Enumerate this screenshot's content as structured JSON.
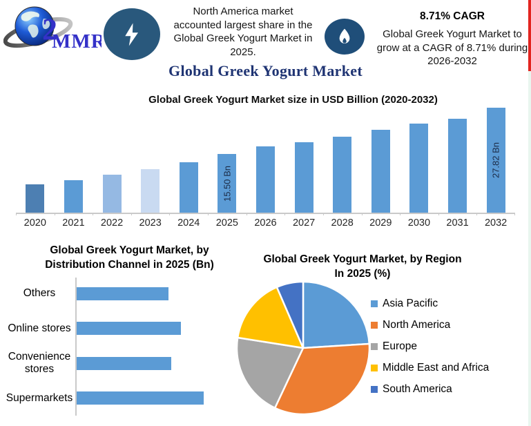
{
  "brand": {
    "logo_text": "MMR",
    "logo_icon": "globe-icon",
    "logo_numeral": "2"
  },
  "header": {
    "energy_icon": "lightning-icon",
    "headline": "North America market accounted largest share in the Global Greek Yogurt Market in 2025.",
    "growth_icon": "flame-icon",
    "cagr_title": "8.71% CAGR",
    "cagr_text": "Global Greek Yogurt Market to grow at a CAGR of 8.71% during 2026-2032"
  },
  "main_title": "Global Greek Yogurt Market",
  "colors": {
    "title_navy": "#1f3473",
    "bar_blue": "#5b9bd5",
    "bolt_badge_blue": "#29587c",
    "flame_badge_blue": "#1f4e79",
    "axis_gray": "#c9c9c9",
    "red_edge_strip": "#e2241f",
    "green_edge_strip": "#e9f6ef",
    "logo_blue": "#3431c8"
  },
  "chart_data": [
    {
      "id": "market_size",
      "type": "bar",
      "title": "Global Greek Yogurt Market size in USD Billion (2020-2032)",
      "categories": [
        "2020",
        "2021",
        "2022",
        "2023",
        "2024",
        "2025",
        "2026",
        "2027",
        "2028",
        "2029",
        "2030",
        "2031",
        "2032"
      ],
      "values": [
        7.5,
        8.7,
        10.1,
        11.5,
        13.4,
        15.5,
        17.6,
        18.7,
        20.2,
        22.0,
        23.6,
        24.9,
        27.82
      ],
      "ylabel": "USD Billion",
      "ylim": [
        0,
        27.82
      ],
      "data_labels": {
        "2025": "15.50 Bn",
        "2032": "27.82 Bn"
      },
      "bar_colors": [
        "#4d7fb2",
        "#5b9bd5",
        "#95b9e3",
        "#c9daf1",
        "#5b9bd5",
        "#5b9bd5",
        "#5b9bd5",
        "#5b9bd5",
        "#5b9bd5",
        "#5b9bd5",
        "#5b9bd5",
        "#5b9bd5",
        "#5b9bd5"
      ],
      "gridlines": false,
      "legend": false
    },
    {
      "id": "distribution_channel",
      "type": "bar",
      "orientation": "horizontal",
      "title_lines": [
        "Global Greek Yogurt Market, by",
        "Distribution Channel  in 2025 (Bn)"
      ],
      "categories": [
        "Others",
        "Online stores",
        "Convenience stores",
        "Supermarkets"
      ],
      "values": [
        3.4,
        3.85,
        3.5,
        4.7
      ],
      "xlim": [
        0,
        5
      ],
      "bar_color": "#5b9bd5",
      "gridlines": false,
      "legend": false
    },
    {
      "id": "region_share",
      "type": "pie",
      "title_lines": [
        "Global Greek Yogurt Market, by Region",
        "In 2025 (%)"
      ],
      "labels": [
        "Asia Pacific",
        "North America",
        "Europe",
        "Middle East and Africa",
        "South America"
      ],
      "values": [
        24,
        33,
        20.5,
        16,
        6.5
      ],
      "colors": [
        "#5b9bd5",
        "#ed7d31",
        "#a5a5a5",
        "#ffc000",
        "#4472c4"
      ],
      "legend_position": "right",
      "start_angle": "top",
      "direction": "clockwise"
    }
  ]
}
